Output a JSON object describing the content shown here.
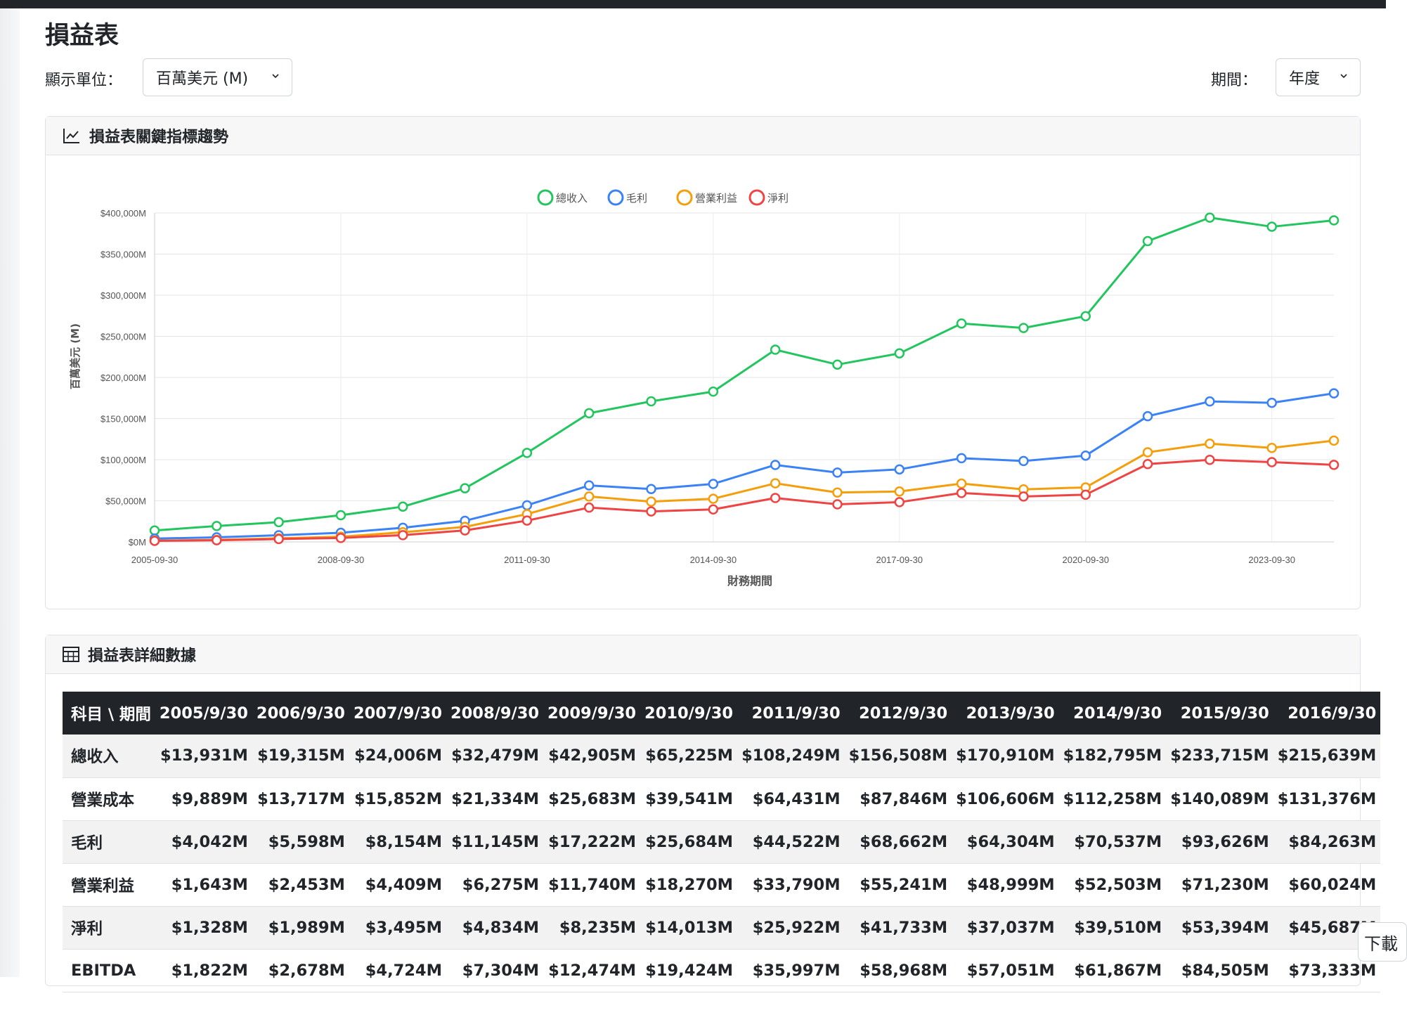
{
  "page": {
    "title": "損益表"
  },
  "controls": {
    "unit_label": "顯示單位：",
    "unit_value": "百萬美元 (M)",
    "period_label": "期間：",
    "period_value": "年度"
  },
  "chart_card": {
    "title": "損益表關鍵指標趨勢"
  },
  "table_card": {
    "title": "損益表詳細數據"
  },
  "download_button": {
    "label": "下載"
  },
  "colors": {
    "revenue": "#22c55e",
    "gross": "#3b82f6",
    "operating": "#f59e0b",
    "net": "#ef4444",
    "header_bg": "#212529"
  },
  "chart_data": {
    "type": "line",
    "xlabel": "財務期間",
    "ylabel": "百萬美元 (M)",
    "ylim": [
      0,
      400000
    ],
    "y_ticks": [
      "$0M",
      "$50,000M",
      "$100,000M",
      "$150,000M",
      "$200,000M",
      "$250,000M",
      "$300,000M",
      "$350,000M",
      "$400,000M"
    ],
    "x_tick_labels": [
      "2005-09-30",
      "2008-09-30",
      "2011-09-30",
      "2014-09-30",
      "2017-09-30",
      "2020-09-30",
      "2023-09-30"
    ],
    "x": [
      "2005-09-30",
      "2006-09-30",
      "2007-09-30",
      "2008-09-30",
      "2009-09-30",
      "2010-09-30",
      "2011-09-30",
      "2012-09-30",
      "2013-09-30",
      "2014-09-30",
      "2015-09-30",
      "2016-09-30",
      "2017-09-30",
      "2018-09-30",
      "2019-09-30",
      "2020-09-30",
      "2021-09-30",
      "2022-09-30",
      "2023-09-30",
      "2024-09-30"
    ],
    "legend_position": "top",
    "grid": true,
    "series": [
      {
        "name": "總收入",
        "color": "#22c55e",
        "values": [
          13931,
          19315,
          24006,
          32479,
          42905,
          65225,
          108249,
          156508,
          170910,
          182795,
          233715,
          215639,
          229234,
          265595,
          260174,
          274515,
          365817,
          394328,
          383285,
          391035
        ]
      },
      {
        "name": "毛利",
        "color": "#3b82f6",
        "values": [
          4042,
          5598,
          8154,
          11145,
          17222,
          25684,
          44522,
          68662,
          64304,
          70537,
          93626,
          84263,
          88186,
          101839,
          98392,
          104956,
          152836,
          170782,
          169148,
          180683
        ]
      },
      {
        "name": "營業利益",
        "color": "#f59e0b",
        "values": [
          1643,
          2453,
          4409,
          6275,
          11740,
          18270,
          33790,
          55241,
          48999,
          52503,
          71230,
          60024,
          61344,
          70898,
          63930,
          66288,
          108949,
          119437,
          114301,
          123216
        ]
      },
      {
        "name": "淨利",
        "color": "#ef4444",
        "values": [
          1328,
          1989,
          3495,
          4834,
          8235,
          14013,
          25922,
          41733,
          37037,
          39510,
          53394,
          45687,
          48351,
          59531,
          55256,
          57411,
          94680,
          99803,
          96995,
          93736
        ]
      }
    ]
  },
  "table": {
    "corner_header": "科目 \\ 期間",
    "columns": [
      "2005/9/30",
      "2006/9/30",
      "2007/9/30",
      "2008/9/30",
      "2009/9/30",
      "2010/9/30",
      "2011/9/30",
      "2012/9/30",
      "2013/9/30",
      "2014/9/30",
      "2015/9/30",
      "2016/9/30"
    ],
    "rows": [
      {
        "label": "總收入",
        "values": [
          "$13,931M",
          "$19,315M",
          "$24,006M",
          "$32,479M",
          "$42,905M",
          "$65,225M",
          "$108,249M",
          "$156,508M",
          "$170,910M",
          "$182,795M",
          "$233,715M",
          "$215,639M"
        ]
      },
      {
        "label": "營業成本",
        "values": [
          "$9,889M",
          "$13,717M",
          "$15,852M",
          "$21,334M",
          "$25,683M",
          "$39,541M",
          "$64,431M",
          "$87,846M",
          "$106,606M",
          "$112,258M",
          "$140,089M",
          "$131,376M"
        ]
      },
      {
        "label": "毛利",
        "values": [
          "$4,042M",
          "$5,598M",
          "$8,154M",
          "$11,145M",
          "$17,222M",
          "$25,684M",
          "$44,522M",
          "$68,662M",
          "$64,304M",
          "$70,537M",
          "$93,626M",
          "$84,263M"
        ]
      },
      {
        "label": "營業利益",
        "values": [
          "$1,643M",
          "$2,453M",
          "$4,409M",
          "$6,275M",
          "$11,740M",
          "$18,270M",
          "$33,790M",
          "$55,241M",
          "$48,999M",
          "$52,503M",
          "$71,230M",
          "$60,024M"
        ]
      },
      {
        "label": "淨利",
        "values": [
          "$1,328M",
          "$1,989M",
          "$3,495M",
          "$4,834M",
          "$8,235M",
          "$14,013M",
          "$25,922M",
          "$41,733M",
          "$37,037M",
          "$39,510M",
          "$53,394M",
          "$45,687M"
        ]
      },
      {
        "label": "EBITDA",
        "values": [
          "$1,822M",
          "$2,678M",
          "$4,724M",
          "$7,304M",
          "$12,474M",
          "$19,424M",
          "$35,997M",
          "$58,968M",
          "$57,051M",
          "$61,867M",
          "$84,505M",
          "$73,333M"
        ]
      }
    ]
  }
}
